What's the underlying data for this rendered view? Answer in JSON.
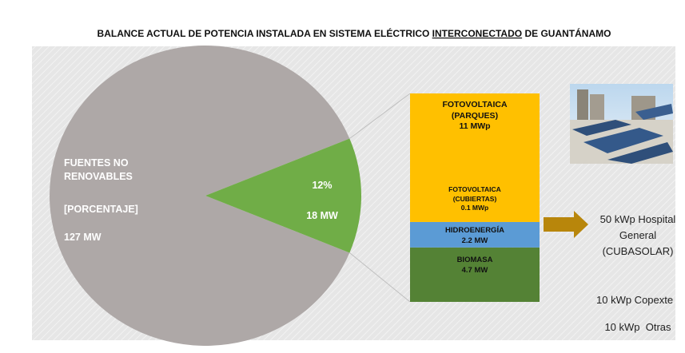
{
  "chart_data": {
    "type": "pie-of-bar",
    "title": "BALANCE ACTUAL  DE POTENCIA INSTALADA EN SISTEMA  ELÉCTRICO",
    "title_underlined": "INTERCONECTADO",
    "title_end": "DE GUANTÁNAMO",
    "pie": {
      "categories": [
        "FUENTES NO RENOVABLES",
        null
      ],
      "values": [
        127,
        18
      ],
      "value_labels": [
        "127 MW",
        "18 MW"
      ],
      "colors": [
        "#aea8a7",
        "#70ad47"
      ],
      "note": "[PORCENTAJE]",
      "share": {
        "value": 12,
        "label": "12%"
      }
    },
    "bar": {
      "categories": [
        "BIOMASA",
        "HIDROENERGÍA",
        "FOTOVOLTAICA (CUBIERTAS)",
        "FOTOVOLTAICA (PARQUES)"
      ],
      "values": [
        4.7,
        2.2,
        0.1,
        11
      ],
      "value_labels": [
        "4.7 MW",
        "2.2 MW",
        "0.1 MWp",
        "11 MWp"
      ],
      "colors": [
        "#548235",
        "#5b9bd5",
        "#ffc000",
        "#ffc000"
      ]
    },
    "notes": [
      "50 kWp Hospital General (CUBASOLAR)",
      "10 kWp Copexte",
      "10 kWp  Otras"
    ]
  }
}
